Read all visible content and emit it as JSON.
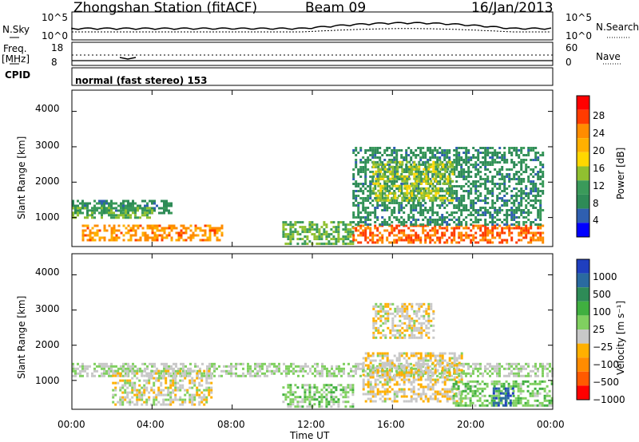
{
  "header": {
    "station": "Zhongshan Station (fitACF)",
    "beam": "Beam 09",
    "date": "16/Jan/2013"
  },
  "top_panels": {
    "nsky_label": "N.Sky",
    "nsky_ticks": [
      "10^5",
      "10^0"
    ],
    "nsearch_label": "N.Search",
    "nsearch_ticks": [
      "10^5",
      "10^0"
    ],
    "freq_label": "Freq.",
    "freq_unit": "[MHz]",
    "freq_ticks": [
      "18",
      "8"
    ],
    "nave_label": "Nave",
    "nave_ticks": [
      "60",
      "0"
    ],
    "cpid_label": "CPID",
    "cpid_value": "normal (fast stereo) 153"
  },
  "axes": {
    "xlabel": "Time UT",
    "x_ticks": [
      "00:00",
      "04:00",
      "08:00",
      "12:00",
      "16:00",
      "20:00",
      "00:00"
    ],
    "ylabel": "Slant Range [km]",
    "y_ticks": [
      "4000",
      "3000",
      "2000",
      "1000"
    ]
  },
  "power_colorbar": {
    "label": "Power [dB]",
    "ticks": [
      "28",
      "24",
      "20",
      "16",
      "12",
      "8",
      "4"
    ],
    "colors": [
      "#ff0000",
      "#ff3b00",
      "#ff8c00",
      "#ffb000",
      "#ffd700",
      "#90c030",
      "#3a9a5a",
      "#2e8b57",
      "#2f5fb0",
      "#0000ff"
    ]
  },
  "velocity_colorbar": {
    "label": "Velocity [m s⁻¹]",
    "ticks": [
      "1000",
      "500",
      "100",
      "25",
      "−25",
      "−100",
      "−500",
      "−1000"
    ],
    "colors": [
      "#1f3fbf",
      "#2a6aa0",
      "#2e8b57",
      "#40b040",
      "#80d060",
      "#c8c8c8",
      "#ffb000",
      "#ff8c00",
      "#ff5a00",
      "#ff0000"
    ]
  },
  "chart_data": [
    {
      "type": "heatmap",
      "title": "Zhongshan Station (fitACF) Beam 09 16/Jan/2013",
      "xlabel": "Time UT",
      "ylabel": "Slant Range [km]",
      "xlim": [
        0,
        24
      ],
      "ylim": [
        180,
        4600
      ],
      "colorbar": "Power [dB]",
      "colorbar_range": [
        0,
        30
      ],
      "patches": [
        {
          "t0": 0.0,
          "t1": 5.0,
          "r0": 1150,
          "r1": 1500,
          "value": 8
        },
        {
          "t0": 0.5,
          "t1": 7.5,
          "r0": 350,
          "r1": 800,
          "value": 22
        },
        {
          "t0": 0.0,
          "t1": 4.0,
          "r0": 1000,
          "r1": 1300,
          "value": 12
        },
        {
          "t0": 10.5,
          "t1": 14.0,
          "r0": 250,
          "r1": 900,
          "value": 12
        },
        {
          "t0": 14.0,
          "t1": 23.5,
          "r0": 300,
          "r1": 800,
          "value": 24
        },
        {
          "t0": 14.0,
          "t1": 23.5,
          "r0": 800,
          "r1": 3000,
          "value": 8
        },
        {
          "t0": 15.0,
          "t1": 19.0,
          "r0": 1500,
          "r1": 2600,
          "value": 14
        }
      ]
    },
    {
      "type": "heatmap",
      "title": "",
      "xlabel": "Time UT",
      "ylabel": "Slant Range [km]",
      "xlim": [
        0,
        24
      ],
      "ylim": [
        180,
        4600
      ],
      "colorbar": "Velocity [m s⁻¹]",
      "colorbar_range": [
        -1000,
        1000
      ],
      "patches": [
        {
          "t0": 0.0,
          "t1": 24.0,
          "r0": 1150,
          "r1": 1500,
          "value": 0
        },
        {
          "t0": 2.0,
          "t1": 7.0,
          "r0": 300,
          "r1": 1300,
          "value": -100
        },
        {
          "t0": 10.5,
          "t1": 14.0,
          "r0": 250,
          "r1": 900,
          "value": 100
        },
        {
          "t0": 14.5,
          "t1": 19.5,
          "r0": 400,
          "r1": 1800,
          "value": -150
        },
        {
          "t0": 15.0,
          "t1": 18.0,
          "r0": 2200,
          "r1": 3200,
          "value": -120
        },
        {
          "t0": 19.0,
          "t1": 24.0,
          "r0": 300,
          "r1": 1000,
          "value": 150
        },
        {
          "t0": 21.0,
          "t1": 22.0,
          "r0": 300,
          "r1": 800,
          "value": 800
        }
      ]
    }
  ]
}
